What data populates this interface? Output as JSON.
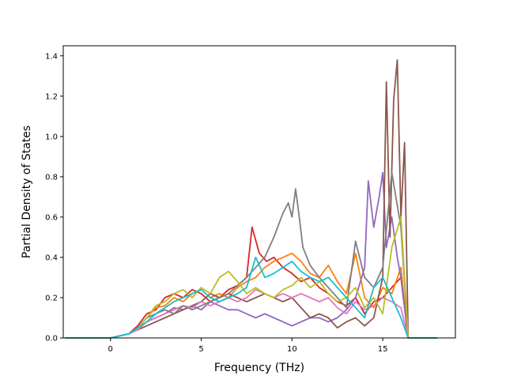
{
  "chart_data": {
    "type": "line",
    "title": "",
    "xlabel": "Frequency (THz)",
    "ylabel": "Partial Density of States",
    "xlim": [
      -2.6,
      19.0
    ],
    "ylim": [
      0.0,
      1.45
    ],
    "xticks": [
      0,
      5,
      10,
      15
    ],
    "yticks": [
      0.0,
      0.2,
      0.4,
      0.6,
      0.8,
      1.0,
      1.2,
      1.4
    ],
    "xtick_labels": [
      "0",
      "5",
      "10",
      "15"
    ],
    "ytick_labels": [
      "0.0",
      "0.2",
      "0.4",
      "0.6",
      "0.8",
      "1.0",
      "1.2",
      "1.4"
    ],
    "grid": false,
    "legend": "none",
    "series": [
      {
        "color": "#d62728",
        "x": [
          -2.5,
          0,
          1,
          1.5,
          2,
          2.5,
          3,
          3.5,
          4,
          4.5,
          5,
          5.5,
          6,
          6.5,
          7,
          7.5,
          7.8,
          8.2,
          8.6,
          9,
          9.5,
          10,
          10.5,
          11,
          11.5,
          12,
          12.5,
          13,
          13.5,
          14,
          14.5,
          15,
          15.5,
          16,
          16.4,
          18
        ],
        "y": [
          0,
          0,
          0.02,
          0.06,
          0.12,
          0.14,
          0.2,
          0.22,
          0.2,
          0.24,
          0.22,
          0.18,
          0.2,
          0.24,
          0.26,
          0.3,
          0.55,
          0.42,
          0.38,
          0.4,
          0.35,
          0.32,
          0.28,
          0.3,
          0.25,
          0.22,
          0.18,
          0.16,
          0.2,
          0.12,
          0.18,
          0.2,
          0.25,
          0.3,
          0.0,
          0.0
        ]
      },
      {
        "color": "#ff7f0e",
        "x": [
          -2.5,
          0,
          1,
          1.5,
          2,
          2.5,
          3,
          3.5,
          4,
          4.5,
          5,
          5.5,
          6,
          6.5,
          7,
          7.5,
          8,
          8.5,
          9,
          9.5,
          10,
          10.5,
          11,
          11.5,
          12,
          12.5,
          13,
          13.5,
          14,
          14.5,
          15,
          15.5,
          16,
          16.4,
          18
        ],
        "y": [
          0,
          0,
          0.02,
          0.05,
          0.1,
          0.15,
          0.16,
          0.2,
          0.18,
          0.22,
          0.24,
          0.2,
          0.22,
          0.2,
          0.25,
          0.28,
          0.3,
          0.35,
          0.38,
          0.4,
          0.42,
          0.38,
          0.32,
          0.3,
          0.36,
          0.28,
          0.22,
          0.42,
          0.2,
          0.15,
          0.25,
          0.22,
          0.35,
          0.0,
          0.0
        ]
      },
      {
        "color": "#9467bd",
        "x": [
          -2.5,
          0,
          1,
          1.5,
          2,
          2.5,
          3,
          3.5,
          4,
          4.5,
          5,
          5.5,
          6,
          6.5,
          7,
          7.5,
          8,
          8.5,
          9,
          9.5,
          10,
          10.5,
          11,
          11.5,
          12,
          12.5,
          13,
          13.5,
          14,
          14.2,
          14.5,
          14.8,
          15,
          15.2,
          15.5,
          15.8,
          16,
          16.4,
          18
        ],
        "y": [
          0,
          0,
          0.02,
          0.05,
          0.08,
          0.1,
          0.12,
          0.15,
          0.14,
          0.16,
          0.14,
          0.18,
          0.16,
          0.14,
          0.14,
          0.12,
          0.1,
          0.12,
          0.1,
          0.08,
          0.06,
          0.08,
          0.1,
          0.1,
          0.08,
          0.1,
          0.14,
          0.2,
          0.35,
          0.78,
          0.55,
          0.7,
          0.82,
          0.45,
          0.6,
          0.4,
          0.3,
          0.0,
          0.0
        ]
      },
      {
        "color": "#8c564b",
        "x": [
          -2.5,
          0,
          1,
          1.5,
          2,
          2.5,
          3,
          3.5,
          4,
          4.5,
          5,
          5.5,
          6,
          6.5,
          7,
          7.5,
          8,
          8.5,
          9,
          9.5,
          10,
          10.5,
          11,
          11.5,
          12,
          12.5,
          13,
          13.5,
          14,
          14.5,
          15,
          15.2,
          15.4,
          15.6,
          15.8,
          16,
          16.2,
          16.4,
          18
        ],
        "y": [
          0,
          0,
          0.02,
          0.04,
          0.06,
          0.08,
          0.1,
          0.12,
          0.14,
          0.16,
          0.18,
          0.22,
          0.2,
          0.22,
          0.2,
          0.18,
          0.2,
          0.22,
          0.2,
          0.18,
          0.2,
          0.15,
          0.1,
          0.12,
          0.1,
          0.05,
          0.08,
          0.1,
          0.06,
          0.1,
          0.3,
          1.27,
          0.5,
          1.18,
          1.38,
          0.6,
          0.97,
          0.0,
          0.0
        ]
      },
      {
        "color": "#e377c2",
        "x": [
          -2.5,
          0,
          1,
          1.5,
          2,
          2.5,
          3,
          3.5,
          4,
          4.5,
          5,
          5.5,
          6,
          6.5,
          7,
          7.5,
          8,
          8.5,
          9,
          9.5,
          10,
          10.5,
          11,
          11.5,
          12,
          12.5,
          13,
          13.5,
          14,
          14.5,
          15,
          15.5,
          16,
          16.4,
          18
        ],
        "y": [
          0,
          0,
          0.02,
          0.04,
          0.08,
          0.1,
          0.12,
          0.14,
          0.16,
          0.15,
          0.18,
          0.16,
          0.18,
          0.2,
          0.18,
          0.2,
          0.24,
          0.22,
          0.2,
          0.22,
          0.2,
          0.22,
          0.2,
          0.18,
          0.2,
          0.15,
          0.12,
          0.18,
          0.14,
          0.16,
          0.2,
          0.18,
          0.15,
          0.0,
          0.0
        ]
      },
      {
        "color": "#7f7f7f",
        "x": [
          -2.5,
          0,
          1,
          1.5,
          2,
          2.5,
          3,
          3.5,
          4,
          4.5,
          5,
          5.5,
          6,
          6.5,
          7,
          7.5,
          8,
          8.5,
          9,
          9.5,
          9.8,
          10,
          10.2,
          10.4,
          10.6,
          11,
          11.5,
          12,
          12.5,
          13,
          13.5,
          14,
          14.5,
          15,
          15.5,
          16,
          16.4,
          18
        ],
        "y": [
          0,
          0,
          0.02,
          0.05,
          0.1,
          0.12,
          0.14,
          0.12,
          0.16,
          0.14,
          0.16,
          0.18,
          0.2,
          0.22,
          0.26,
          0.3,
          0.35,
          0.4,
          0.5,
          0.62,
          0.67,
          0.6,
          0.74,
          0.6,
          0.45,
          0.36,
          0.3,
          0.25,
          0.2,
          0.15,
          0.48,
          0.3,
          0.25,
          0.35,
          0.82,
          0.55,
          0.0,
          0.0
        ]
      },
      {
        "color": "#bcbd22",
        "x": [
          -2.5,
          0,
          1,
          1.5,
          2,
          2.5,
          3,
          3.5,
          4,
          4.5,
          5,
          5.5,
          6,
          6.5,
          7,
          7.5,
          8,
          8.5,
          9,
          9.5,
          10,
          10.5,
          11,
          11.5,
          12,
          12.5,
          13,
          13.5,
          14,
          14.5,
          15,
          15.5,
          16,
          16.4,
          18
        ],
        "y": [
          0,
          0,
          0.02,
          0.05,
          0.1,
          0.16,
          0.18,
          0.22,
          0.24,
          0.2,
          0.25,
          0.22,
          0.3,
          0.33,
          0.28,
          0.22,
          0.25,
          0.22,
          0.2,
          0.24,
          0.26,
          0.3,
          0.25,
          0.28,
          0.22,
          0.18,
          0.2,
          0.25,
          0.15,
          0.2,
          0.12,
          0.45,
          0.6,
          0.0,
          0.0
        ]
      },
      {
        "color": "#17becf",
        "x": [
          -2.5,
          0,
          1,
          1.5,
          2,
          2.5,
          3,
          3.5,
          4,
          4.5,
          5,
          5.5,
          6,
          6.5,
          7,
          7.5,
          8,
          8.5,
          9,
          9.5,
          10,
          10.5,
          11,
          11.5,
          12,
          12.5,
          13,
          13.5,
          14,
          14.5,
          15,
          15.5,
          16,
          16.4,
          18
        ],
        "y": [
          0,
          0,
          0.02,
          0.05,
          0.08,
          0.12,
          0.15,
          0.18,
          0.2,
          0.22,
          0.24,
          0.2,
          0.18,
          0.2,
          0.22,
          0.25,
          0.4,
          0.3,
          0.32,
          0.35,
          0.38,
          0.33,
          0.3,
          0.28,
          0.3,
          0.25,
          0.2,
          0.15,
          0.1,
          0.25,
          0.3,
          0.2,
          0.1,
          0.0,
          0.0
        ]
      }
    ]
  }
}
